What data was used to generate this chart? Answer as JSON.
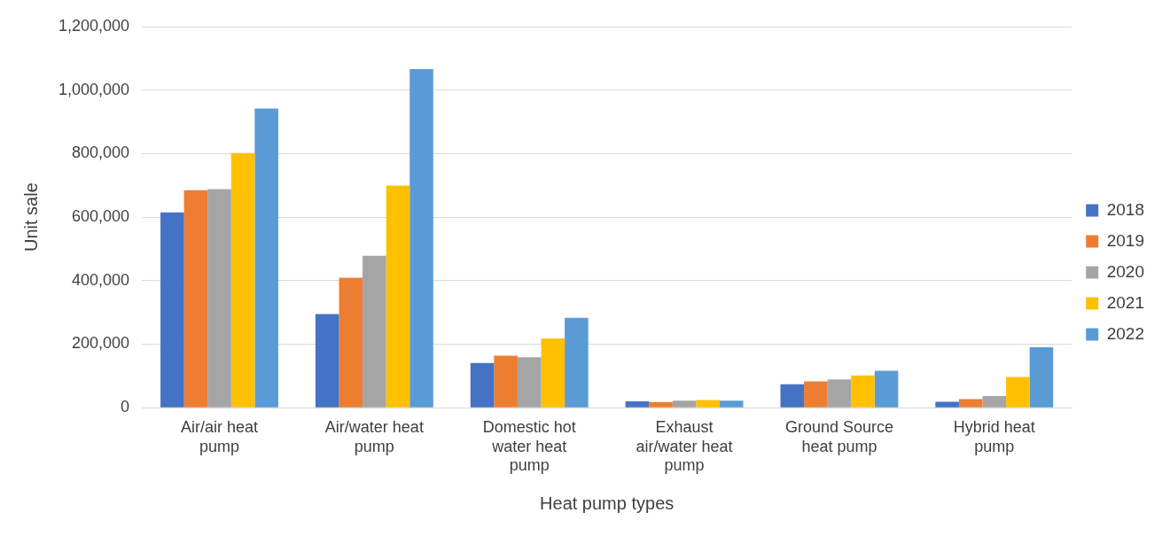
{
  "chart_data": {
    "type": "bar",
    "xlabel": "Heat pump types",
    "ylabel": "Unit sale",
    "categories": [
      "Air/air heat pump",
      "Air/water heat pump",
      "Domestic hot water heat pump",
      "Exhaust air/water heat pump",
      "Ground Source heat pump",
      "Hybrid heat pump"
    ],
    "series": [
      {
        "name": "2018",
        "color": "#4472c4",
        "values": [
          615000,
          295000,
          141000,
          20000,
          74000,
          19000
        ]
      },
      {
        "name": "2019",
        "color": "#ed7d31",
        "values": [
          685000,
          409000,
          164000,
          18000,
          83000,
          27000
        ]
      },
      {
        "name": "2020",
        "color": "#a5a5a5",
        "values": [
          688000,
          478000,
          159000,
          22000,
          89000,
          37000
        ]
      },
      {
        "name": "2021",
        "color": "#ffc000",
        "values": [
          802000,
          699000,
          218000,
          24000,
          102000,
          97000
        ]
      },
      {
        "name": "2022",
        "color": "#5b9bd5",
        "values": [
          942000,
          1066000,
          283000,
          22000,
          116000,
          190000
        ]
      }
    ],
    "ylim": [
      0,
      1200000
    ],
    "yticks": [
      0,
      {
        "value": 200000,
        "label": "200,000"
      },
      {
        "value": 400000,
        "label": "400,000"
      },
      {
        "value": 600000,
        "label": "600,000"
      },
      {
        "value": 800000,
        "label": "800,000"
      },
      {
        "value": 1000000,
        "label": "1,000,000"
      },
      {
        "value": 1200000,
        "label": "1,200,000"
      }
    ],
    "grid": "y",
    "legend": "right"
  }
}
